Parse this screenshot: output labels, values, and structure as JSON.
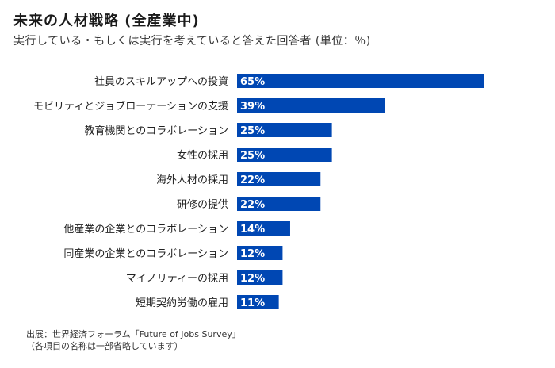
{
  "chart_data": {
    "type": "bar",
    "orientation": "horizontal",
    "title": "未来の人材戦略 (全産業中)",
    "subtitle": "実行している・もしくは実行を考えていると答えた回答者 (単位：％)",
    "categories": [
      "社員のスキルアップへの投資",
      "モビリティとジョブローテーションの支援",
      "教育機関とのコラボレーション",
      "女性の採用",
      "海外人材の採用",
      "研修の提供",
      "他産業の企業とのコラボレーション",
      "同産業の企業とのコラボレーション",
      "マイノリティーの採用",
      "短期契約労働の雇用"
    ],
    "values": [
      65,
      39,
      25,
      25,
      22,
      22,
      14,
      12,
      12,
      11
    ],
    "value_labels": [
      "65%",
      "39%",
      "25%",
      "25%",
      "22%",
      "22%",
      "14%",
      "12%",
      "12%",
      "11%"
    ],
    "xlabel": "",
    "ylabel": "",
    "xlim": [
      0,
      65
    ],
    "grid": false,
    "legend": "none",
    "bar_color": "#0047b3",
    "label_color": "#ffffff",
    "source_lines": [
      "出展：世界経済フォーラム「Future of Jobs Survey」",
      "（各項目の名称は一部省略しています）"
    ]
  }
}
